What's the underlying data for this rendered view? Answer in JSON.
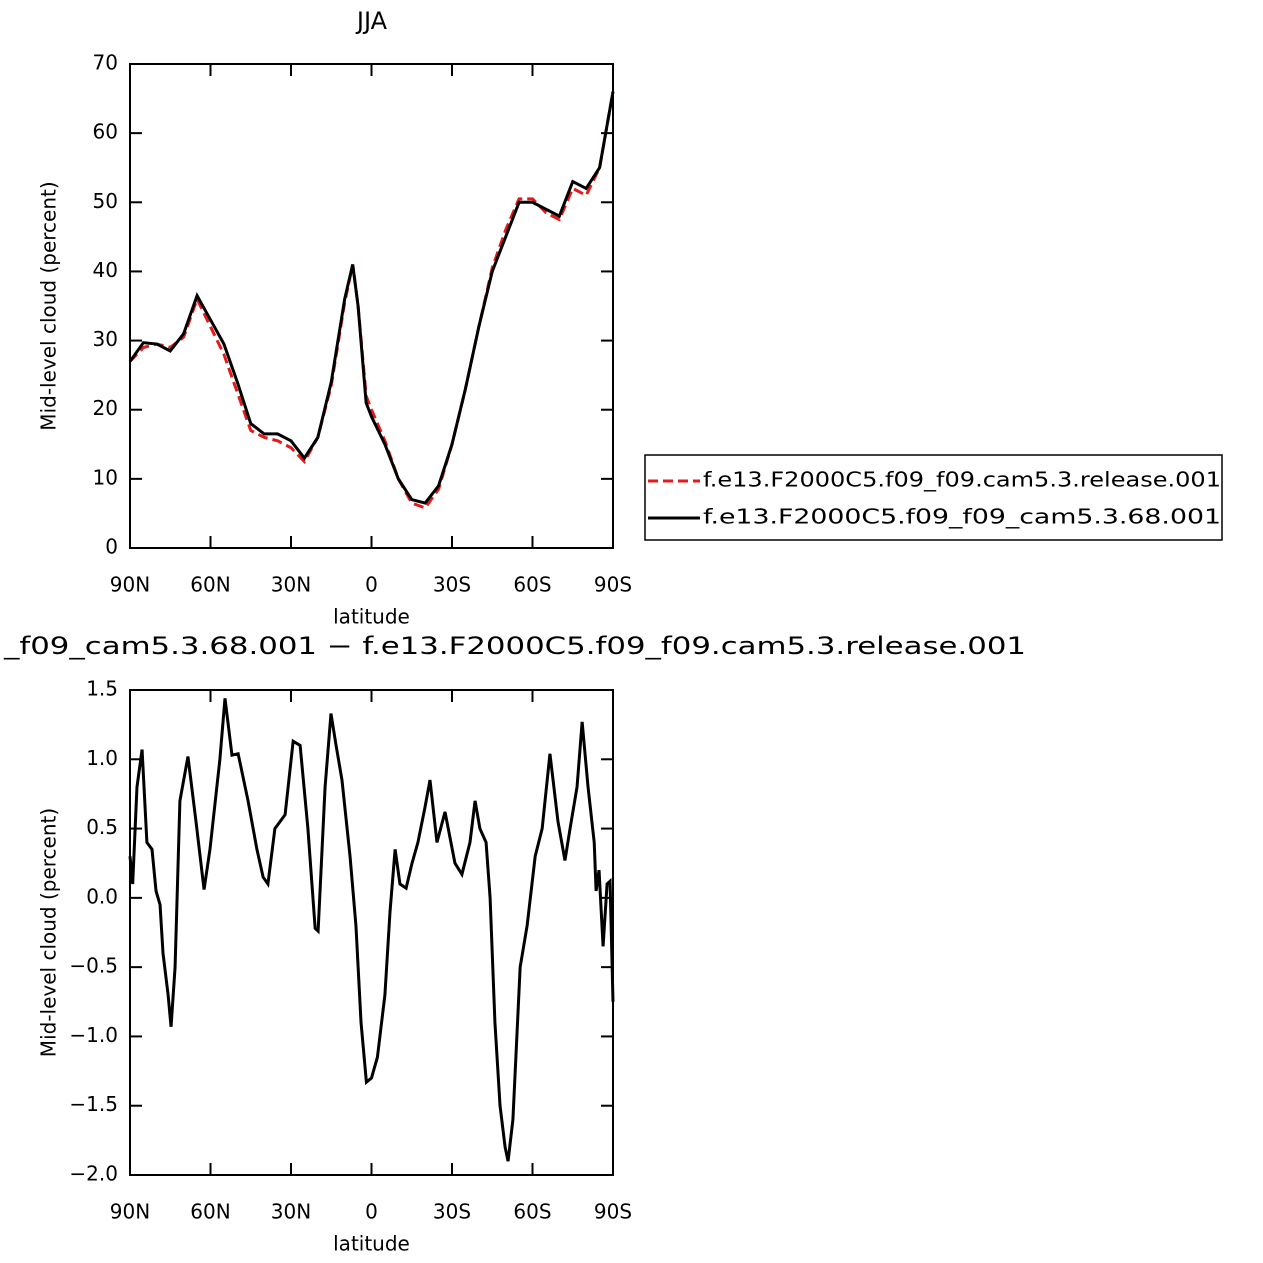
{
  "chart_data": [
    {
      "type": "line",
      "title": "JJA",
      "xlabel": "latitude",
      "ylabel": "Mid-level cloud (percent)",
      "x": [
        90,
        85,
        80,
        75,
        70,
        65,
        60,
        55,
        50,
        45,
        40,
        35,
        30,
        25,
        20,
        15,
        10,
        7,
        5,
        2,
        0,
        -5,
        -10,
        -15,
        -20,
        -25,
        -30,
        -35,
        -40,
        -45,
        -50,
        -55,
        -60,
        -65,
        -70,
        -75,
        -80,
        -85,
        -90
      ],
      "series": [
        {
          "name": "f.e13.F2000C5.f09_f09.cam5.3.release.001",
          "color": "#e41a1c",
          "dash": "dashed",
          "values": [
            27,
            29,
            29.5,
            29,
            30.5,
            36,
            32,
            28,
            22.5,
            17,
            16,
            15.5,
            14.5,
            12.5,
            16,
            23.5,
            35.5,
            41,
            35,
            22,
            20,
            15.5,
            10,
            6.5,
            5.8,
            8.5,
            15,
            23,
            32,
            40.5,
            46,
            50.5,
            50.5,
            48.5,
            47.5,
            52,
            51,
            55,
            66
          ]
        },
        {
          "name": "f.e13.F2000C5.f09_f09_cam5.3.68.001",
          "color": "#000000",
          "dash": "solid",
          "values": [
            27,
            29.7,
            29.5,
            28.5,
            31,
            36.5,
            33,
            29.5,
            24,
            18,
            16.5,
            16.5,
            15.5,
            13,
            16,
            24,
            36,
            41,
            35,
            21,
            19,
            15,
            10,
            7,
            6.5,
            9,
            15,
            23,
            32,
            40,
            45,
            50,
            50,
            49,
            48,
            53,
            52,
            55,
            66
          ]
        }
      ],
      "xlim": [
        90,
        -90
      ],
      "xticks": [
        {
          "value": 90,
          "label": "90N"
        },
        {
          "value": 60,
          "label": "60N"
        },
        {
          "value": 30,
          "label": "30N"
        },
        0,
        {
          "value": -30,
          "label": "30S"
        },
        {
          "value": -60,
          "label": "60S"
        },
        {
          "value": -90,
          "label": "90S"
        }
      ],
      "ylim": [
        0,
        70
      ],
      "yticks": [
        0,
        10,
        20,
        30,
        40,
        50,
        60,
        70
      ],
      "legend": "right"
    },
    {
      "type": "line",
      "title": "_f09_cam5.3.68.001 − f.e13.F2000C5.f09_f09.cam5.3.release.001",
      "xlabel": "latitude",
      "ylabel": "Mid-level cloud (percent)",
      "x": [
        90,
        89,
        87.4,
        85.5,
        83.7,
        81.8,
        80.3,
        78.8,
        77.7,
        75.8,
        74.7,
        73.2,
        71.4,
        68.4,
        65.4,
        62.4,
        60.2,
        56.5,
        54.6,
        52,
        49.7,
        46,
        42.7,
        40.4,
        38.6,
        36,
        32.2,
        29.2,
        26.6,
        23.7,
        21,
        19.9,
        17.3,
        15.1,
        13.2,
        11,
        8,
        5.8,
        3.9,
        1.9,
        0,
        -2.2,
        -5,
        -6.9,
        -8.8,
        -10.6,
        -12.9,
        -15.1,
        -17.3,
        -19.9,
        -21.8,
        -24.4,
        -27.4,
        -31.1,
        -33.7,
        -36.7,
        -38.6,
        -40.4,
        -42.7,
        -44.2,
        -46,
        -47.9,
        -49.8,
        -50.9,
        -52.7,
        -55.4,
        -58,
        -61,
        -63.6,
        -66.5,
        -69.5,
        -72.1,
        -74,
        -76.6,
        -78.5,
        -80.7,
        -83,
        -83.7,
        -84.8,
        -86.3,
        -87.8,
        -88.9,
        -90
      ],
      "values": [
        0.3,
        0.1,
        0.8,
        1.07,
        0.4,
        0.35,
        0.05,
        -0.05,
        -0.4,
        -0.7,
        -0.93,
        -0.5,
        0.7,
        1.02,
        0.55,
        0.06,
        0.35,
        1.0,
        1.44,
        1.03,
        1.04,
        0.7,
        0.35,
        0.15,
        0.1,
        0.5,
        0.6,
        1.13,
        1.1,
        0.5,
        -0.22,
        -0.24,
        0.8,
        1.33,
        1.1,
        0.85,
        0.3,
        -0.2,
        -0.9,
        -1.33,
        -1.3,
        -1.15,
        -0.7,
        -0.1,
        0.35,
        0.1,
        0.07,
        0.25,
        0.4,
        0.65,
        0.85,
        0.4,
        0.62,
        0.25,
        0.17,
        0.4,
        0.7,
        0.5,
        0.4,
        0.0,
        -0.9,
        -1.5,
        -1.8,
        -1.9,
        -1.6,
        -0.5,
        -0.2,
        0.3,
        0.5,
        1.04,
        0.55,
        0.27,
        0.5,
        0.8,
        1.27,
        0.8,
        0.4,
        0.05,
        0.2,
        -0.35,
        0.1,
        0.12,
        -0.75
      ],
      "color": "#000000",
      "xlim": [
        90,
        -90
      ],
      "xticks": [
        {
          "value": 90,
          "label": "90N"
        },
        {
          "value": 60,
          "label": "60N"
        },
        {
          "value": 30,
          "label": "30N"
        },
        0,
        {
          "value": -30,
          "label": "30S"
        },
        {
          "value": -60,
          "label": "60S"
        },
        {
          "value": -90,
          "label": "90S"
        }
      ],
      "ylim": [
        -2,
        1.5
      ],
      "yticks": [
        {
          "value": -2,
          "label": "−2.0"
        },
        {
          "value": -1.5,
          "label": "−1.5"
        },
        {
          "value": -1,
          "label": "−1.0"
        },
        {
          "value": -0.5,
          "label": "−0.5"
        },
        {
          "value": 0,
          "label": "0.0"
        },
        0.5,
        {
          "value": 1,
          "label": "1.0"
        },
        1.5
      ]
    }
  ]
}
